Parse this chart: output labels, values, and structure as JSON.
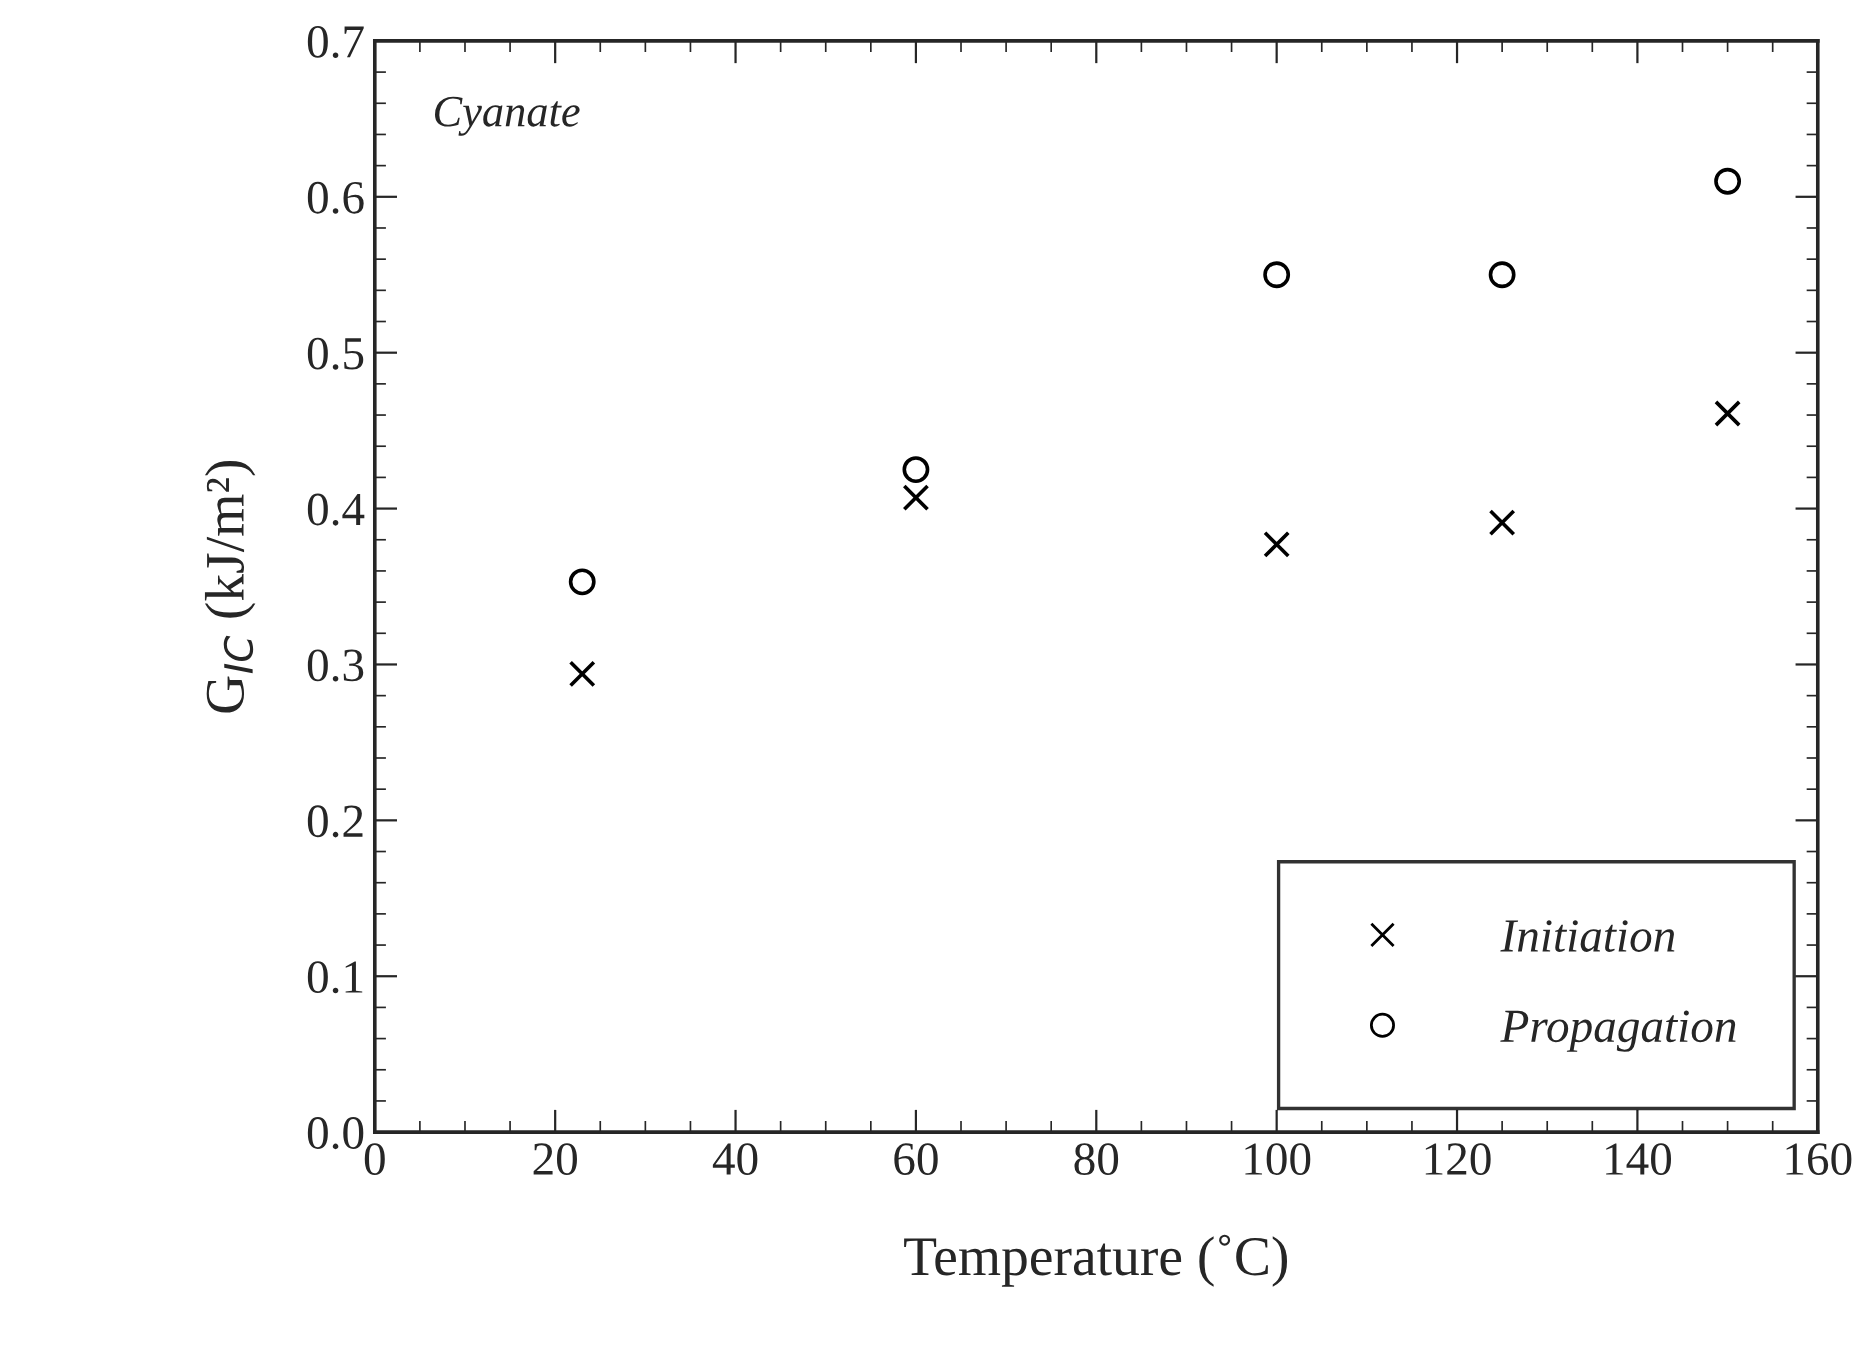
{
  "chart_data": {
    "type": "scatter",
    "xlabel": "Temperature (˚C)",
    "ylabel": "G$_{IC}$ (kJ/m²)",
    "annotations": [
      "Cyanate"
    ],
    "series": [
      {
        "name": "Initiation",
        "color": "#000000",
        "marker": "cross",
        "x": [
          23,
          60,
          100,
          125,
          150
        ],
        "values": [
          0.294,
          0.407,
          0.377,
          0.391,
          0.461
        ]
      },
      {
        "name": "Propagation",
        "color": "#000000",
        "marker": "circle",
        "x": [
          23,
          60,
          100,
          125,
          150
        ],
        "values": [
          0.353,
          0.425,
          0.55,
          0.55,
          0.61
        ]
      }
    ],
    "xlim": [
      0,
      160
    ],
    "xticks": [
      0,
      20,
      40,
      60,
      80,
      100,
      120,
      140,
      160
    ],
    "ylim": [
      0,
      0.7
    ],
    "yticks": [
      {
        "value": 0,
        "label": "0.0"
      },
      0.1,
      0.2,
      0.3,
      0.4,
      0.5,
      0.6,
      0.7
    ],
    "grid": false,
    "legend": "bottom right"
  }
}
